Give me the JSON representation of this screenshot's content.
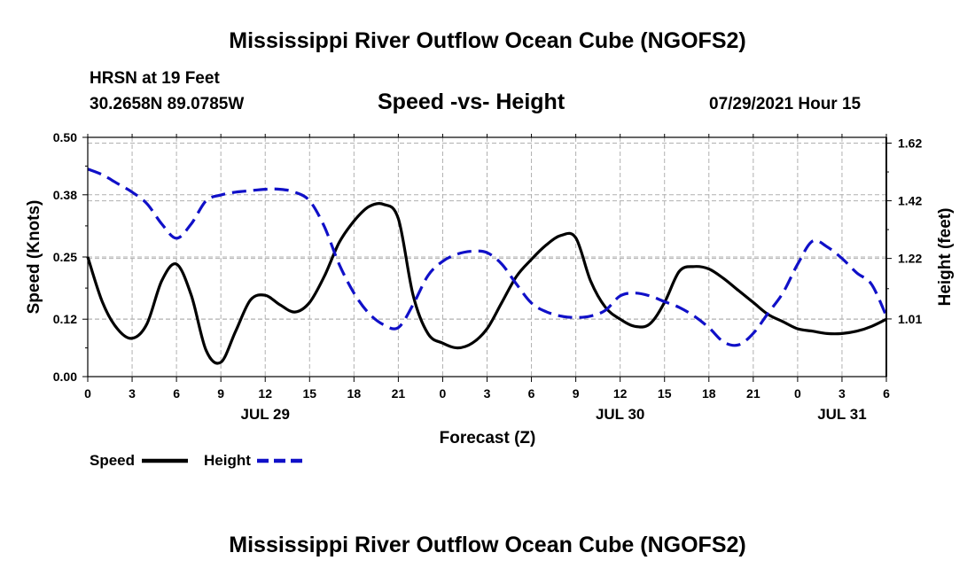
{
  "header": {
    "title": "Mississippi River Outflow Ocean Cube (NGOFS2)",
    "station": "HRSN at 19 Feet",
    "coords": "30.2658N  89.0785W",
    "subtitle": "Speed -vs- Height",
    "datetime": "07/29/2021 Hour 15"
  },
  "footer": {
    "title": "Mississippi River Outflow Ocean Cube (NGOFS2)"
  },
  "colors": {
    "speed": "#000000",
    "height": "#1010c8",
    "grid": "#b0b0b0"
  },
  "chart_data": {
    "type": "line",
    "title": "Speed -vs- Height",
    "xlabel": "Forecast (Z)",
    "ylabel": "Speed (Knots)",
    "y2label": "Height (feet)",
    "xlim": [
      0,
      54
    ],
    "ylim": [
      0.0,
      0.5
    ],
    "y2lim": [
      0.81,
      1.64
    ],
    "x_ticks": [
      0,
      3,
      6,
      9,
      12,
      15,
      18,
      21,
      24,
      27,
      30,
      33,
      36,
      39,
      42,
      45,
      48,
      51,
      54
    ],
    "x_tick_labels": [
      "0",
      "3",
      "6",
      "9",
      "12",
      "15",
      "18",
      "21",
      "0",
      "3",
      "6",
      "9",
      "12",
      "15",
      "18",
      "21",
      "0",
      "3",
      "6"
    ],
    "date_labels": [
      {
        "label": "JUL 29",
        "x": 12
      },
      {
        "label": "JUL 30",
        "x": 36
      },
      {
        "label": "JUL 31",
        "x": 51
      }
    ],
    "y_ticks": [
      0.0,
      0.12,
      0.25,
      0.38,
      0.5
    ],
    "y_tick_labels": [
      "0.00",
      "0.12",
      "0.25",
      "0.38",
      "0.50"
    ],
    "y2_ticks": [
      1.01,
      1.22,
      1.42,
      1.62
    ],
    "y2_tick_labels": [
      "1.01",
      "1.22",
      "1.42",
      "1.62"
    ],
    "legend": [
      {
        "name": "Speed",
        "style": "solid"
      },
      {
        "name": "Height",
        "style": "dashed"
      }
    ],
    "series": [
      {
        "name": "Speed",
        "axis": "left",
        "x": [
          0,
          1,
          2,
          3,
          4,
          5,
          6,
          7,
          8,
          9,
          10,
          11,
          12,
          13,
          14,
          15,
          16,
          17,
          18,
          19,
          20,
          21,
          22,
          23,
          24,
          25,
          26,
          27,
          28,
          29,
          30,
          31,
          32,
          33,
          34,
          35,
          36,
          37,
          38,
          39,
          40,
          41,
          42,
          43,
          44,
          45,
          46,
          47,
          48,
          49,
          50,
          51,
          52,
          53,
          54
        ],
        "values": [
          0.25,
          0.155,
          0.1,
          0.08,
          0.11,
          0.2,
          0.235,
          0.17,
          0.055,
          0.03,
          0.095,
          0.16,
          0.17,
          0.15,
          0.135,
          0.155,
          0.21,
          0.28,
          0.325,
          0.355,
          0.36,
          0.33,
          0.17,
          0.09,
          0.07,
          0.06,
          0.07,
          0.1,
          0.155,
          0.21,
          0.245,
          0.275,
          0.295,
          0.29,
          0.2,
          0.145,
          0.12,
          0.105,
          0.11,
          0.155,
          0.22,
          0.23,
          0.225,
          0.205,
          0.18,
          0.155,
          0.13,
          0.115,
          0.1,
          0.095,
          0.09,
          0.09,
          0.095,
          0.105,
          0.12
        ]
      },
      {
        "name": "Height",
        "axis": "right",
        "x": [
          0,
          1,
          2,
          3,
          4,
          5,
          6,
          7,
          8,
          9,
          10,
          11,
          12,
          13,
          14,
          15,
          16,
          17,
          18,
          19,
          20,
          21,
          22,
          23,
          24,
          25,
          26,
          27,
          28,
          29,
          30,
          31,
          32,
          33,
          34,
          35,
          36,
          37,
          38,
          39,
          40,
          41,
          42,
          43,
          44,
          45,
          46,
          47,
          48,
          49,
          50,
          51,
          52,
          53,
          54
        ],
        "values": [
          1.53,
          1.51,
          1.48,
          1.45,
          1.41,
          1.34,
          1.29,
          1.34,
          1.42,
          1.44,
          1.45,
          1.455,
          1.46,
          1.46,
          1.45,
          1.42,
          1.33,
          1.2,
          1.1,
          1.03,
          0.99,
          0.98,
          1.06,
          1.16,
          1.21,
          1.235,
          1.245,
          1.24,
          1.2,
          1.13,
          1.065,
          1.035,
          1.02,
          1.015,
          1.02,
          1.04,
          1.09,
          1.1,
          1.09,
          1.07,
          1.05,
          1.02,
          0.98,
          0.93,
          0.92,
          0.96,
          1.03,
          1.1,
          1.2,
          1.28,
          1.26,
          1.22,
          1.17,
          1.13,
          1.02
        ]
      }
    ]
  }
}
